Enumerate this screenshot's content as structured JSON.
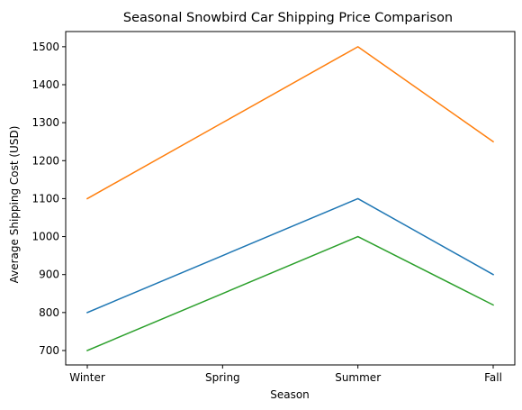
{
  "chart_data": {
    "type": "line",
    "title": "Seasonal Snowbird Car Shipping Price Comparison",
    "xlabel": "Season",
    "ylabel": "Average Shipping Cost (USD)",
    "categories": [
      "Winter",
      "Spring",
      "Summer",
      "Fall"
    ],
    "ylim": [
      662,
      1540
    ],
    "yticks": [
      700,
      800,
      900,
      1000,
      1100,
      1200,
      1300,
      1400,
      1500
    ],
    "grid": false,
    "series": [
      {
        "values": [
          800,
          950,
          1100,
          900
        ],
        "color": "#1f77b4"
      },
      {
        "values": [
          1100,
          1300,
          1500,
          1250
        ],
        "color": "#ff7f0e"
      },
      {
        "values": [
          700,
          850,
          1000,
          820
        ],
        "color": "#2ca02c"
      }
    ]
  }
}
